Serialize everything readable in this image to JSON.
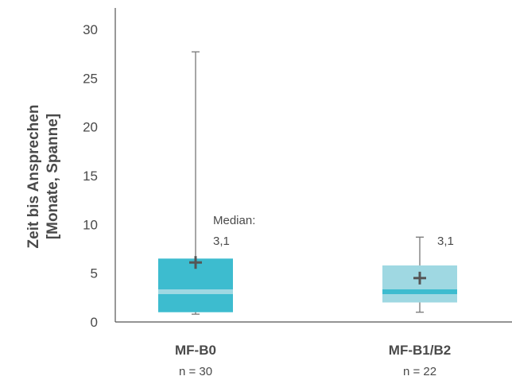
{
  "chart_data": {
    "type": "box",
    "ylabel": [
      "Zeit bis Ansprechen",
      "[Monate, Spanne]"
    ],
    "ylim": [
      0,
      30
    ],
    "yticks": [
      0,
      5,
      10,
      15,
      20,
      25,
      30
    ],
    "grid": false,
    "boxes": [
      {
        "category": "MF-B0",
        "n_label": "n = 30",
        "min": 0.8,
        "q1": 1.0,
        "median": 3.1,
        "q3": 6.5,
        "max": 27.7,
        "mean": 6.1,
        "color": "#3dbccf",
        "median_color": "#9fd8e2",
        "annotation": [
          "Median:",
          "3,1"
        ]
      },
      {
        "category": "MF-B1/B2",
        "n_label": "n = 22",
        "min": 1.0,
        "q1": 2.0,
        "median": 3.1,
        "q3": 5.8,
        "max": 8.7,
        "mean": 4.5,
        "color": "#9fd8e2",
        "median_color": "#3dbccf",
        "annotation": [
          "3,1"
        ]
      }
    ]
  }
}
